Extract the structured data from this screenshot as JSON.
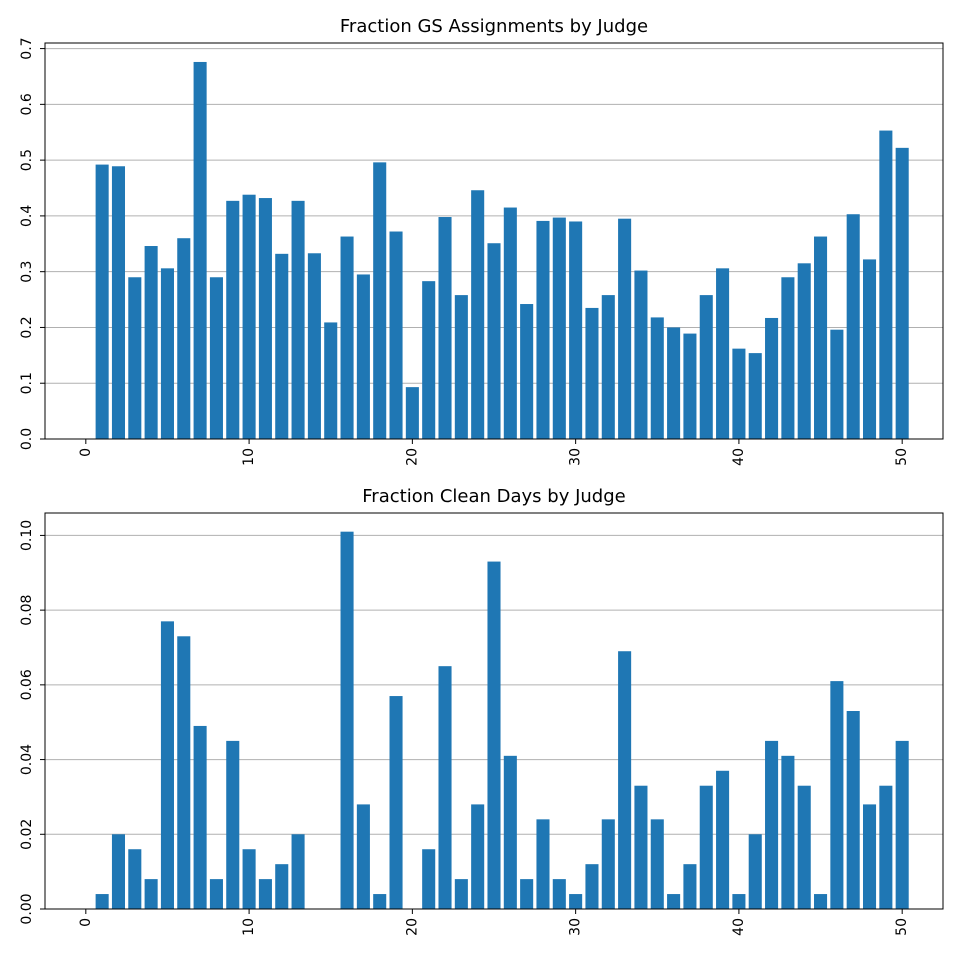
{
  "chart_data": [
    {
      "type": "bar",
      "title": "Fraction GS Assignments by Judge",
      "xlabel": "",
      "ylabel": "",
      "x": [
        1,
        2,
        3,
        4,
        5,
        6,
        7,
        8,
        9,
        10,
        11,
        12,
        13,
        14,
        15,
        16,
        17,
        18,
        19,
        20,
        21,
        22,
        23,
        24,
        25,
        26,
        27,
        28,
        29,
        30,
        31,
        32,
        33,
        34,
        35,
        36,
        37,
        38,
        39,
        40,
        41,
        42,
        43,
        44,
        45,
        46,
        47,
        48,
        49,
        50
      ],
      "values": [
        0.492,
        0.489,
        0.29,
        0.346,
        0.306,
        0.36,
        0.676,
        0.29,
        0.427,
        0.438,
        0.432,
        0.332,
        0.427,
        0.333,
        0.209,
        0.363,
        0.295,
        0.496,
        0.372,
        0.093,
        0.283,
        0.398,
        0.258,
        0.446,
        0.351,
        0.415,
        0.242,
        0.391,
        0.397,
        0.39,
        0.235,
        0.258,
        0.395,
        0.302,
        0.218,
        0.2,
        0.189,
        0.258,
        0.306,
        0.162,
        0.154,
        0.217,
        0.29,
        0.315,
        0.363,
        0.196,
        0.403,
        0.322,
        0.553,
        0.522
      ],
      "xlim": [
        -2.5,
        52.5
      ],
      "ylim": [
        0,
        0.71
      ],
      "xticks": [
        0,
        10,
        20,
        30,
        40,
        50
      ],
      "xtick_labels": [
        "0",
        "10",
        "20",
        "30",
        "40",
        "50"
      ],
      "yticks": [
        0.0,
        0.1,
        0.2,
        0.3,
        0.4,
        0.5,
        0.6,
        0.7
      ],
      "ytick_labels": [
        "0.0",
        "0.1",
        "0.2",
        "0.3",
        "0.4",
        "0.5",
        "0.6",
        "0.7"
      ],
      "grid": "y",
      "bar_color": "#1f77b4"
    },
    {
      "type": "bar",
      "title": "Fraction Clean Days by Judge",
      "xlabel": "",
      "ylabel": "",
      "x": [
        1,
        2,
        3,
        4,
        5,
        6,
        7,
        8,
        9,
        10,
        11,
        12,
        13,
        14,
        15,
        16,
        17,
        18,
        19,
        20,
        21,
        22,
        23,
        24,
        25,
        26,
        27,
        28,
        29,
        30,
        31,
        32,
        33,
        34,
        35,
        36,
        37,
        38,
        39,
        40,
        41,
        42,
        43,
        44,
        45,
        46,
        47,
        48,
        49,
        50
      ],
      "values": [
        0.004,
        0.02,
        0.016,
        0.008,
        0.077,
        0.073,
        0.049,
        0.008,
        0.045,
        0.016,
        0.008,
        0.012,
        0.02,
        0.0,
        0.0,
        0.101,
        0.028,
        0.004,
        0.057,
        0.0,
        0.016,
        0.065,
        0.008,
        0.028,
        0.093,
        0.041,
        0.008,
        0.024,
        0.008,
        0.004,
        0.012,
        0.024,
        0.069,
        0.033,
        0.024,
        0.004,
        0.012,
        0.033,
        0.037,
        0.004,
        0.02,
        0.045,
        0.041,
        0.033,
        0.004,
        0.061,
        0.053,
        0.028,
        0.033,
        0.045
      ],
      "xlim": [
        -2.5,
        52.5
      ],
      "ylim": [
        0,
        0.106
      ],
      "xticks": [
        0,
        10,
        20,
        30,
        40,
        50
      ],
      "xtick_labels": [
        "0",
        "10",
        "20",
        "30",
        "40",
        "50"
      ],
      "yticks": [
        0.0,
        0.02,
        0.04,
        0.06,
        0.08,
        0.1
      ],
      "ytick_labels": [
        "0.00",
        "0.02",
        "0.04",
        "0.06",
        "0.08",
        "0.10"
      ],
      "grid": "y",
      "bar_color": "#1f77b4"
    }
  ]
}
